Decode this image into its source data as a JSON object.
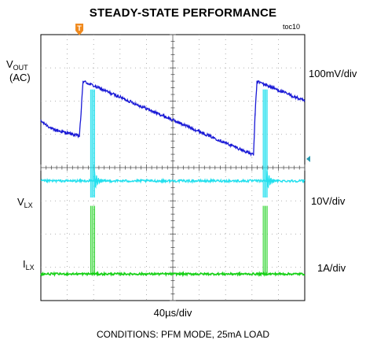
{
  "title": "STEADY-STATE PERFORMANCE",
  "figure_id": "toc10",
  "conditions": "CONDITIONS: PFM MODE, 25mA LOAD",
  "colors": {
    "vout": "#1a1ad6",
    "vlx": "#22e0ee",
    "ilx": "#18d018",
    "trigger": "#f08a1e",
    "marker": "#2a9ab0",
    "grid": "#9a9a9a"
  },
  "chart_data": {
    "type": "line",
    "title": "STEADY-STATE PERFORMANCE",
    "xlabel": "40µs/div",
    "x_divisions": 10,
    "y_divisions": 8,
    "grid": true,
    "trigger_marker": "T",
    "series": [
      {
        "name": "VOUT",
        "name_main": "V",
        "name_sub": "OUT",
        "name_extra": "(AC)",
        "scale": "100mV/div",
        "points": [
          [
            0,
            5.4
          ],
          [
            0.45,
            5.15
          ],
          [
            1.46,
            4.95
          ],
          [
            1.52,
            5.6
          ],
          [
            1.6,
            6.6
          ],
          [
            8.06,
            4.38
          ],
          [
            8.12,
            5.6
          ],
          [
            8.19,
            6.6
          ],
          [
            10,
            6.0
          ]
        ]
      },
      {
        "name": "VLX",
        "name_main": "V",
        "name_sub": "LX",
        "scale": "10V/div",
        "baseline": 3.6,
        "bursts": [
          {
            "x": 1.96,
            "peak": 6.35,
            "low": 3.1
          },
          {
            "x": 8.5,
            "peak": 6.35,
            "low": 3.1
          }
        ]
      },
      {
        "name": "ILX",
        "name_main": "I",
        "name_sub": "LX",
        "scale": "1A/div",
        "baseline": 0.8,
        "bursts": [
          {
            "x": 1.96,
            "peak": 2.85
          },
          {
            "x": 8.5,
            "peak": 2.85
          }
        ]
      }
    ]
  }
}
